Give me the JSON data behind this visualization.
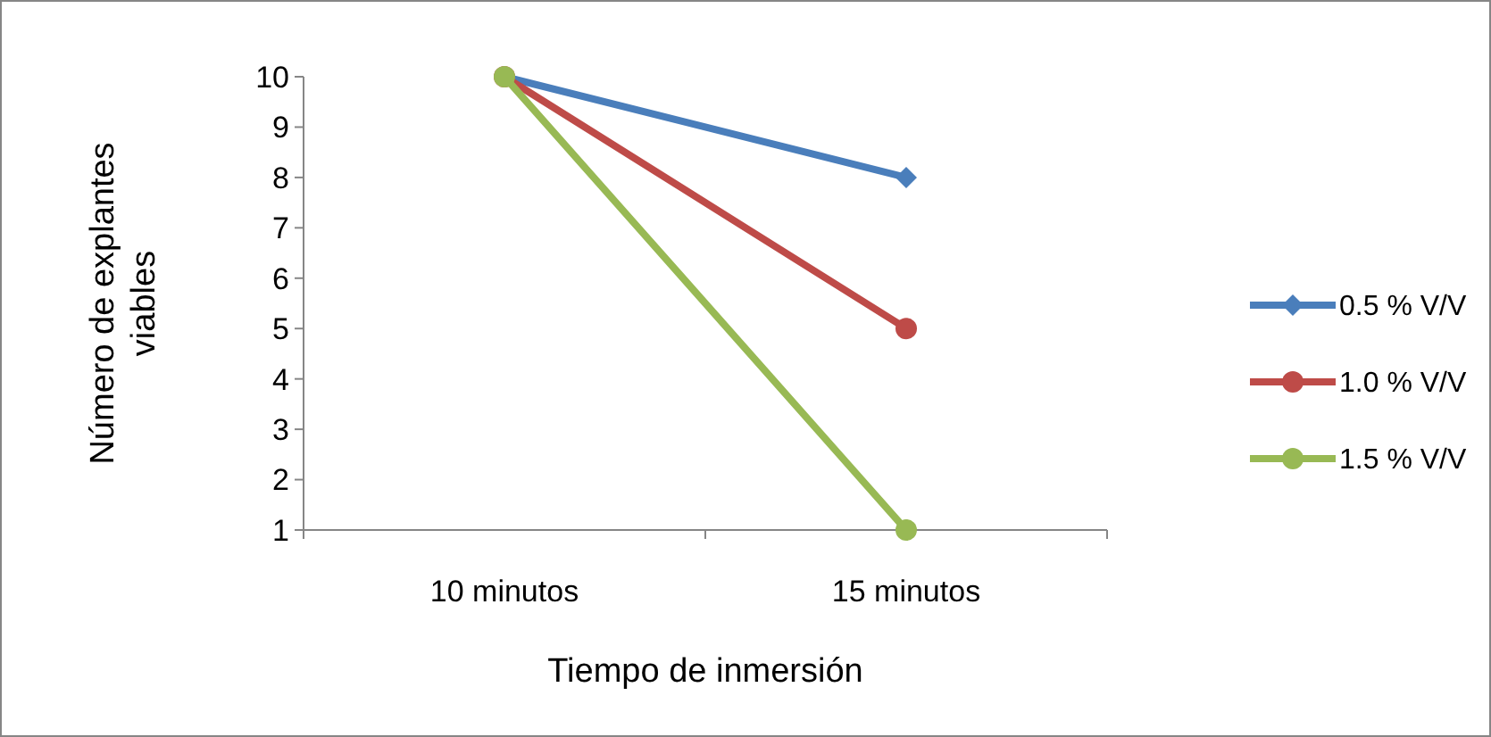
{
  "chart_data": {
    "type": "line",
    "xlabel": "Tiempo de inmersión",
    "ylabel": "Número de explantes viables",
    "categories": [
      "10 minutos",
      "15 minutos"
    ],
    "ylim": [
      1,
      10
    ],
    "yticks": [
      1,
      2,
      3,
      4,
      5,
      6,
      7,
      8,
      9,
      10
    ],
    "grid": false,
    "legend": "right",
    "series": [
      {
        "name": "0.5 % V/V",
        "color": "#4a7ebb",
        "values": [
          10,
          8
        ],
        "marker": "diamond"
      },
      {
        "name": "1.0 % V/V",
        "color": "#be4b48",
        "values": [
          10,
          5
        ],
        "marker": "circle"
      },
      {
        "name": "1.5 % V/V",
        "color": "#98b954",
        "values": [
          10,
          1
        ],
        "marker": "circle"
      }
    ]
  }
}
